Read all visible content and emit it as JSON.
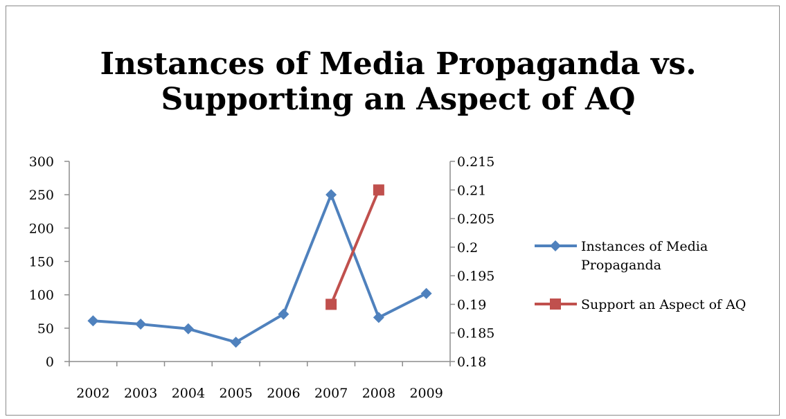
{
  "chart_data": {
    "type": "line",
    "title_lines": [
      "Instances of Media Propaganda vs.",
      "Supporting an Aspect of AQ"
    ],
    "categories": [
      "2002",
      "2003",
      "2004",
      "2005",
      "2006",
      "2007",
      "2008",
      "2009"
    ],
    "y_left": {
      "min": 0,
      "max": 300,
      "step": 50,
      "ticks": [
        "0",
        "50",
        "100",
        "150",
        "200",
        "250",
        "300"
      ]
    },
    "y_right": {
      "min": 0.18,
      "max": 0.215,
      "step": 0.005,
      "ticks": [
        "0.18",
        "0.185",
        "0.19",
        "0.195",
        "0.2",
        "0.205",
        "0.21",
        "0.215"
      ]
    },
    "grid": false,
    "legend_position": "right",
    "series": [
      {
        "name": "Instances of Media Propaganda",
        "legend_lines": [
          "Instances of Media",
          "Propaganda"
        ],
        "axis": "left",
        "marker": "diamond",
        "color": "#4f81bd",
        "values": [
          61,
          56,
          49,
          29,
          71,
          250,
          66,
          102
        ]
      },
      {
        "name": "Support an Aspect of AQ",
        "legend_lines": [
          "Support an Aspect of AQ"
        ],
        "axis": "right",
        "marker": "square",
        "color": "#c0504d",
        "values": [
          null,
          null,
          null,
          null,
          null,
          0.19,
          0.21,
          null
        ]
      }
    ]
  }
}
